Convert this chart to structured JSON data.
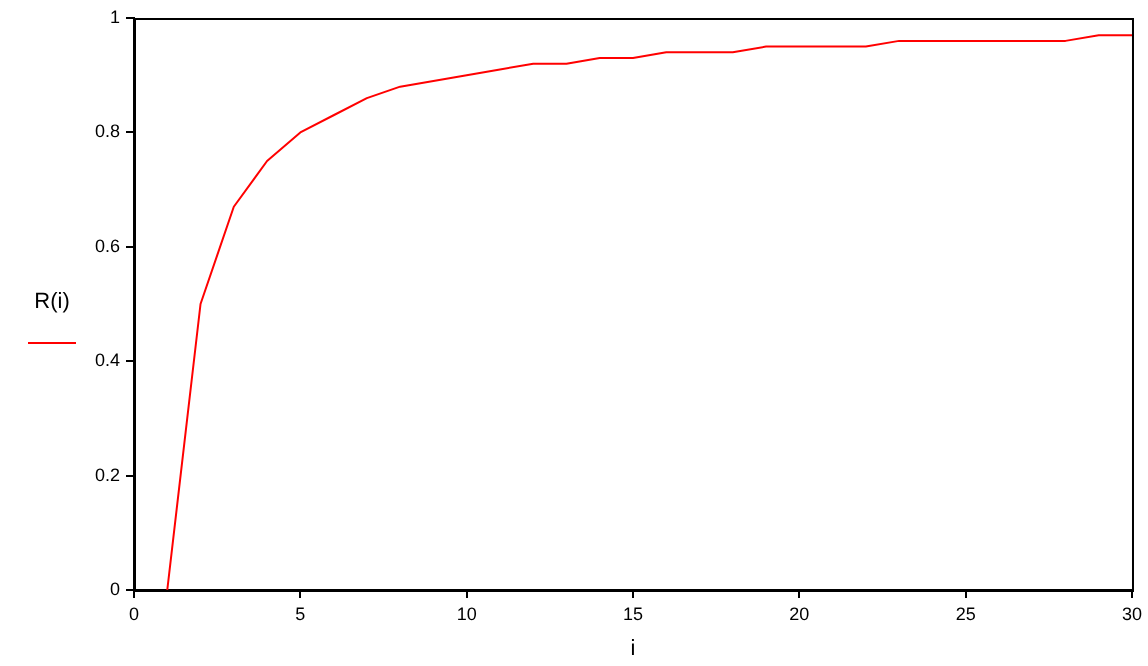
{
  "chart_data": {
    "type": "line",
    "xlabel": "i",
    "ylabel": "R(i)",
    "x": [
      1,
      2,
      3,
      4,
      5,
      6,
      7,
      8,
      9,
      10,
      11,
      12,
      13,
      14,
      15,
      16,
      17,
      18,
      19,
      20,
      21,
      22,
      23,
      24,
      25,
      26,
      27,
      28,
      29,
      30
    ],
    "series": [
      {
        "color": "#ff0000",
        "values": [
          0,
          0.5,
          0.67,
          0.75,
          0.8,
          0.83,
          0.86,
          0.88,
          0.89,
          0.9,
          0.91,
          0.92,
          0.92,
          0.93,
          0.93,
          0.94,
          0.94,
          0.94,
          0.95,
          0.95,
          0.95,
          0.95,
          0.96,
          0.96,
          0.96,
          0.96,
          0.96,
          0.96,
          0.97,
          0.97
        ]
      }
    ],
    "xlim": [
      0,
      30
    ],
    "xticks": [
      0,
      5,
      10,
      15,
      20,
      25,
      30
    ],
    "ylim": [
      0,
      1
    ],
    "yticks": [
      0,
      0.2,
      0.4,
      0.6,
      0.8,
      1
    ],
    "marker": "none",
    "line_style": "solid"
  }
}
